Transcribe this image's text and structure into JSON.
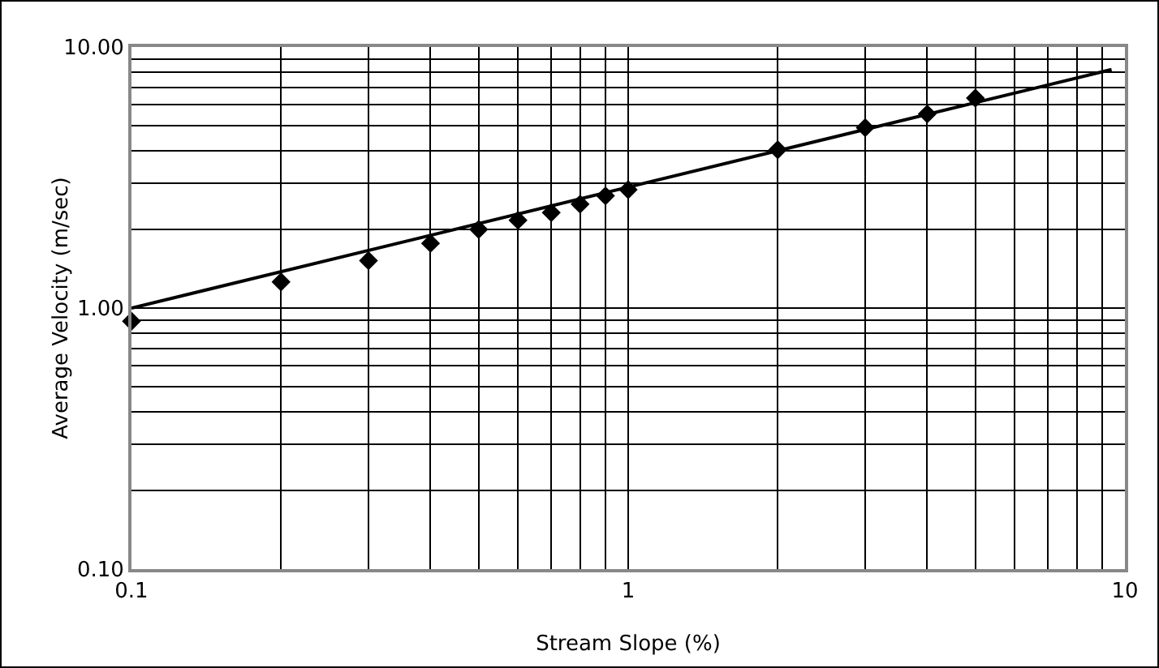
{
  "chart_data": {
    "type": "scatter",
    "xlabel": "Stream Slope (%)",
    "ylabel": "Average Velocity (m/sec)",
    "log": "xy",
    "grid": true,
    "xlim": [
      0.1,
      10
    ],
    "ylim": [
      0.1,
      10
    ],
    "xticks": [
      0.1,
      {
        "value": 0.2,
        "label": null
      },
      {
        "value": 0.3,
        "label": null
      },
      {
        "value": 0.4,
        "label": null
      },
      {
        "value": 0.5,
        "label": null
      },
      {
        "value": 0.6,
        "label": null
      },
      {
        "value": 0.7,
        "label": null
      },
      {
        "value": 0.8,
        "label": null
      },
      {
        "value": 0.9,
        "label": null
      },
      1,
      {
        "value": 2,
        "label": null
      },
      {
        "value": 3,
        "label": null
      },
      {
        "value": 4,
        "label": null
      },
      {
        "value": 5,
        "label": null
      },
      {
        "value": 6,
        "label": null
      },
      {
        "value": 7,
        "label": null
      },
      {
        "value": 8,
        "label": null
      },
      {
        "value": 9,
        "label": null
      },
      10
    ],
    "yticks": [
      {
        "value": 0.1,
        "label": "0.10"
      },
      {
        "value": 0.2,
        "label": null
      },
      {
        "value": 0.3,
        "label": null
      },
      {
        "value": 0.4,
        "label": null
      },
      {
        "value": 0.5,
        "label": null
      },
      {
        "value": 0.6,
        "label": null
      },
      {
        "value": 0.7,
        "label": null
      },
      {
        "value": 0.8,
        "label": null
      },
      {
        "value": 0.9,
        "label": null
      },
      {
        "value": 1,
        "label": "1.00"
      },
      {
        "value": 2,
        "label": null
      },
      {
        "value": 3,
        "label": null
      },
      {
        "value": 4,
        "label": null
      },
      {
        "value": 5,
        "label": null
      },
      {
        "value": 6,
        "label": null
      },
      {
        "value": 7,
        "label": null
      },
      {
        "value": 8,
        "label": null
      },
      {
        "value": 9,
        "label": null
      },
      {
        "value": 10,
        "label": "10.00"
      }
    ],
    "series": [
      {
        "marker": "diamond",
        "color": "#000000",
        "x": [
          0.1,
          0.2,
          0.3,
          0.4,
          0.5,
          0.6,
          0.7,
          0.8,
          0.9,
          1,
          2,
          3,
          4,
          5
        ],
        "values": [
          0.89,
          1.26,
          1.52,
          1.77,
          2.0,
          2.17,
          2.32,
          2.5,
          2.69,
          2.84,
          4.04,
          4.91,
          5.54,
          6.37
        ]
      },
      {
        "type": "line",
        "marker": "none",
        "line_style": "solid",
        "color": "#000000",
        "x": [
          0.1,
          9.4
        ],
        "values": [
          1.0,
          8.2
        ]
      }
    ]
  }
}
